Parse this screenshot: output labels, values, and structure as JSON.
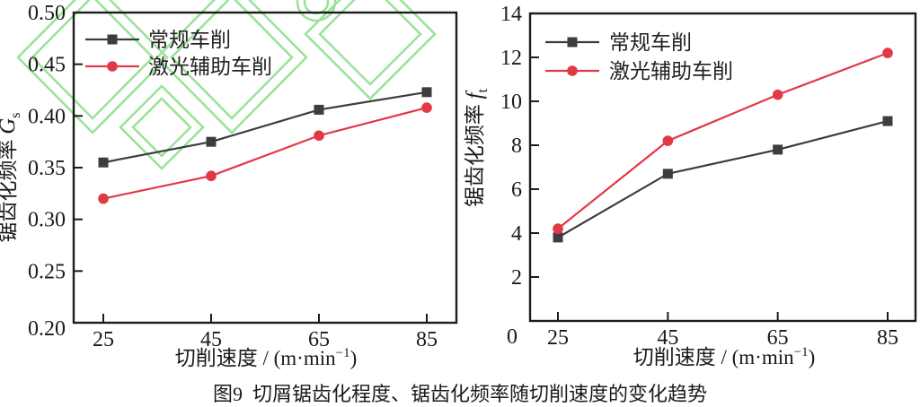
{
  "figure": {
    "caption": "图9  切屑锯齿化程度、锯齿化频率随切削速度的变化趋势"
  },
  "colors": {
    "frame": "#1c1c1c",
    "text": "#1a1a1a",
    "conventional_series": "#3d3d40",
    "laser_series": "#e13845",
    "watermark": "#98e298"
  },
  "chart_data": [
    {
      "type": "line",
      "title": "",
      "x": [
        25,
        45,
        65,
        85
      ],
      "xtick_labels": [
        "25",
        "45",
        "65",
        "85"
      ],
      "xlabel": {
        "pre": "切削速度 / (m·min",
        "sup": "−1",
        "post": ")"
      },
      "ylabel": {
        "text": "锯齿化频率",
        "symbol": "G",
        "sub": "s"
      },
      "ylim": [
        0.2,
        0.5
      ],
      "yticks": [
        {
          "v": 0.5,
          "label": "0.50"
        },
        {
          "v": 0.45,
          "label": "0.45"
        },
        {
          "v": 0.4,
          "label": "0.40"
        },
        {
          "v": 0.35,
          "label": "0.35"
        },
        {
          "v": 0.3,
          "label": "0.30"
        },
        {
          "v": 0.25,
          "label": "0.25"
        },
        {
          "v": 0.2,
          "label": "0.20"
        }
      ],
      "series": [
        {
          "name": "常规车削",
          "marker": "square",
          "color": "#3d3d40",
          "values": [
            0.355,
            0.375,
            0.406,
            0.423
          ]
        },
        {
          "name": "激光辅助车削",
          "marker": "circle",
          "color": "#e13845",
          "values": [
            0.32,
            0.342,
            0.381,
            0.408
          ]
        }
      ],
      "legend_position": "top-left",
      "grid": false
    },
    {
      "type": "line",
      "title": "",
      "x": [
        25,
        45,
        65,
        85
      ],
      "xtick_labels": [
        "25",
        "45",
        "65",
        "85"
      ],
      "xlabel": {
        "pre": "切削速度 / (m·min",
        "sup": "−1",
        "post": ")"
      },
      "ylabel": {
        "text": "锯齿化频率",
        "symbol": "f",
        "sub": "t"
      },
      "ylim": [
        0,
        14
      ],
      "yticks": [
        {
          "v": 14,
          "label": "14"
        },
        {
          "v": 12,
          "label": "12"
        },
        {
          "v": 10,
          "label": "10"
        },
        {
          "v": 8,
          "label": "8"
        },
        {
          "v": 6,
          "label": "6"
        },
        {
          "v": 4,
          "label": "4"
        },
        {
          "v": 2,
          "label": "2"
        },
        {
          "v": 0,
          "label": "0"
        }
      ],
      "series": [
        {
          "name": "常规车削",
          "marker": "square",
          "color": "#3d3d40",
          "values": [
            3.8,
            6.7,
            7.8,
            9.1
          ]
        },
        {
          "name": "激光辅助车削",
          "marker": "circle",
          "color": "#e13845",
          "values": [
            4.2,
            8.2,
            10.3,
            12.2
          ]
        }
      ],
      "legend_position": "top-left",
      "grid": false
    }
  ]
}
